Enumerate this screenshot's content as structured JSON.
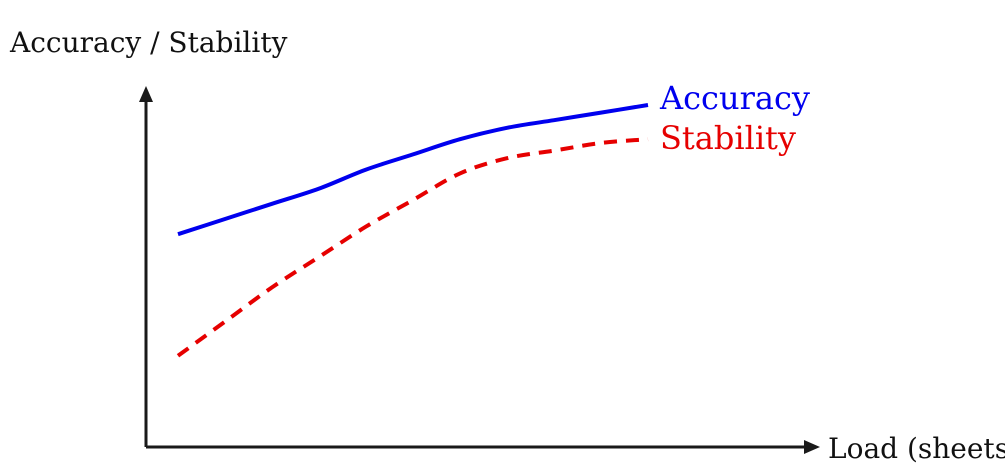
{
  "chart_data": {
    "type": "line",
    "title": "",
    "ylabel": "Accuracy / Stability",
    "xlabel": "Load (sheets)",
    "xlim": [
      0,
      1
    ],
    "ylim": [
      0,
      1
    ],
    "grid": false,
    "legend": "inline-right",
    "series": [
      {
        "name": "Accuracy",
        "color": "#0000ee",
        "style": "solid",
        "x": [
          0.0,
          0.1,
          0.2,
          0.3,
          0.4,
          0.5,
          0.6,
          0.7,
          0.8,
          0.9,
          1.0
        ],
        "y": [
          0.56,
          0.6,
          0.64,
          0.68,
          0.73,
          0.77,
          0.81,
          0.84,
          0.86,
          0.88,
          0.9
        ]
      },
      {
        "name": "Stability",
        "color": "#e60000",
        "style": "dashed",
        "x": [
          0.0,
          0.1,
          0.2,
          0.3,
          0.4,
          0.5,
          0.6,
          0.7,
          0.8,
          0.9,
          1.0
        ],
        "y": [
          0.24,
          0.33,
          0.42,
          0.5,
          0.58,
          0.65,
          0.72,
          0.76,
          0.78,
          0.8,
          0.81
        ]
      }
    ]
  }
}
